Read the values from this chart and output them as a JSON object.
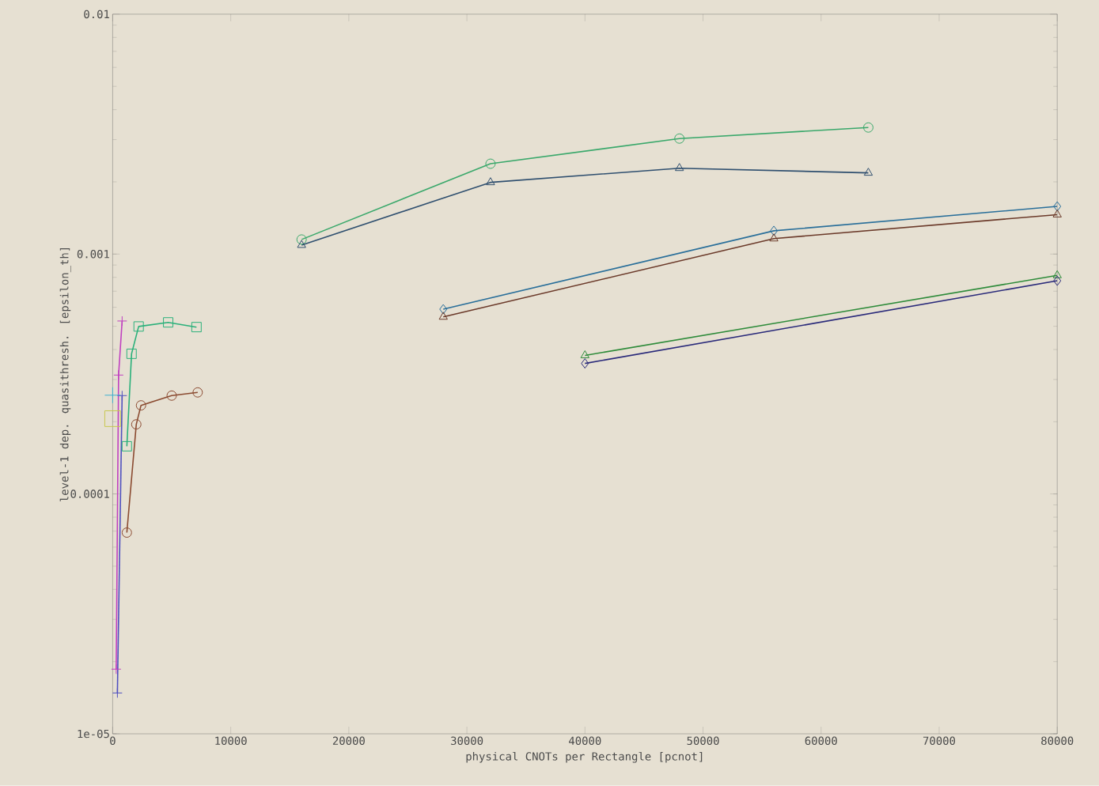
{
  "chart_data": {
    "type": "line",
    "xlabel": "physical CNOTs per Rectangle [pcnot]",
    "ylabel": "level-1 dep. quasithresh. [epsilon_th]",
    "log": "y",
    "grid": false,
    "line_style": "solid",
    "xlim": [
      0,
      80000
    ],
    "xticks": [
      0,
      10000,
      20000,
      30000,
      40000,
      50000,
      60000,
      70000,
      80000
    ],
    "ylim": [
      1e-05,
      0.01
    ],
    "yticks": [
      {
        "value": 1e-05,
        "label": "1e-05"
      },
      0.0001,
      0.001,
      0.01
    ],
    "series": [
      {
        "color": "#3aa86b",
        "marker": "circle",
        "x": [
          16000,
          32000,
          48000,
          64000
        ],
        "values": [
          0.00115,
          0.00238,
          0.00303,
          0.00337
        ]
      },
      {
        "color": "#2f4f6f",
        "marker": "triangle",
        "x": [
          16000,
          32000,
          48000,
          64000
        ],
        "values": [
          0.00109,
          0.00199,
          0.00228,
          0.00218
        ]
      },
      {
        "color": "#2a6f9a",
        "marker": "diamond",
        "x": [
          28000,
          56000,
          80000
        ],
        "values": [
          0.000589,
          0.00125,
          0.00158
        ]
      },
      {
        "color": "#6b3a2a",
        "marker": "triangle",
        "x": [
          28000,
          56000,
          80000
        ],
        "values": [
          0.000547,
          0.00116,
          0.00146
        ]
      },
      {
        "color": "#2e8b3a",
        "marker": "triangle",
        "x": [
          40000,
          80000
        ],
        "values": [
          0.000378,
          0.000815
        ]
      },
      {
        "color": "#2a2a7a",
        "marker": "diamond",
        "x": [
          40000,
          80000
        ],
        "values": [
          0.00035,
          0.000774
        ]
      },
      {
        "color": "#2ab07a",
        "marker": "square",
        "x": [
          1200,
          1600,
          2200,
          4700,
          7100
        ],
        "values": [
          0.000158,
          0.000384,
          0.000499,
          0.000519,
          0.000496
        ]
      },
      {
        "color": "#8a4a30",
        "marker": "circle",
        "x": [
          1200,
          2000,
          2400,
          5000,
          7200
        ],
        "values": [
          6.9e-05,
          0.000195,
          0.000234,
          0.000257,
          0.000265
        ]
      },
      {
        "color": "#c040c0",
        "marker": "cross",
        "x": [
          300,
          500,
          800
        ],
        "values": [
          1.86e-05,
          0.000313,
          0.000526
        ]
      },
      {
        "color": "#5050c0",
        "marker": "cross",
        "x": [
          400,
          800
        ],
        "values": [
          1.48e-05,
          0.000257
        ]
      },
      {
        "type": "scatter",
        "color": "#40b0d0",
        "marker": "cross",
        "x": [
          0
        ],
        "values": [
          0.000258
        ]
      },
      {
        "type": "scatter",
        "color": "#c8c850",
        "marker": "square",
        "x": [
          0
        ],
        "values": [
          0.000206
        ]
      }
    ]
  }
}
